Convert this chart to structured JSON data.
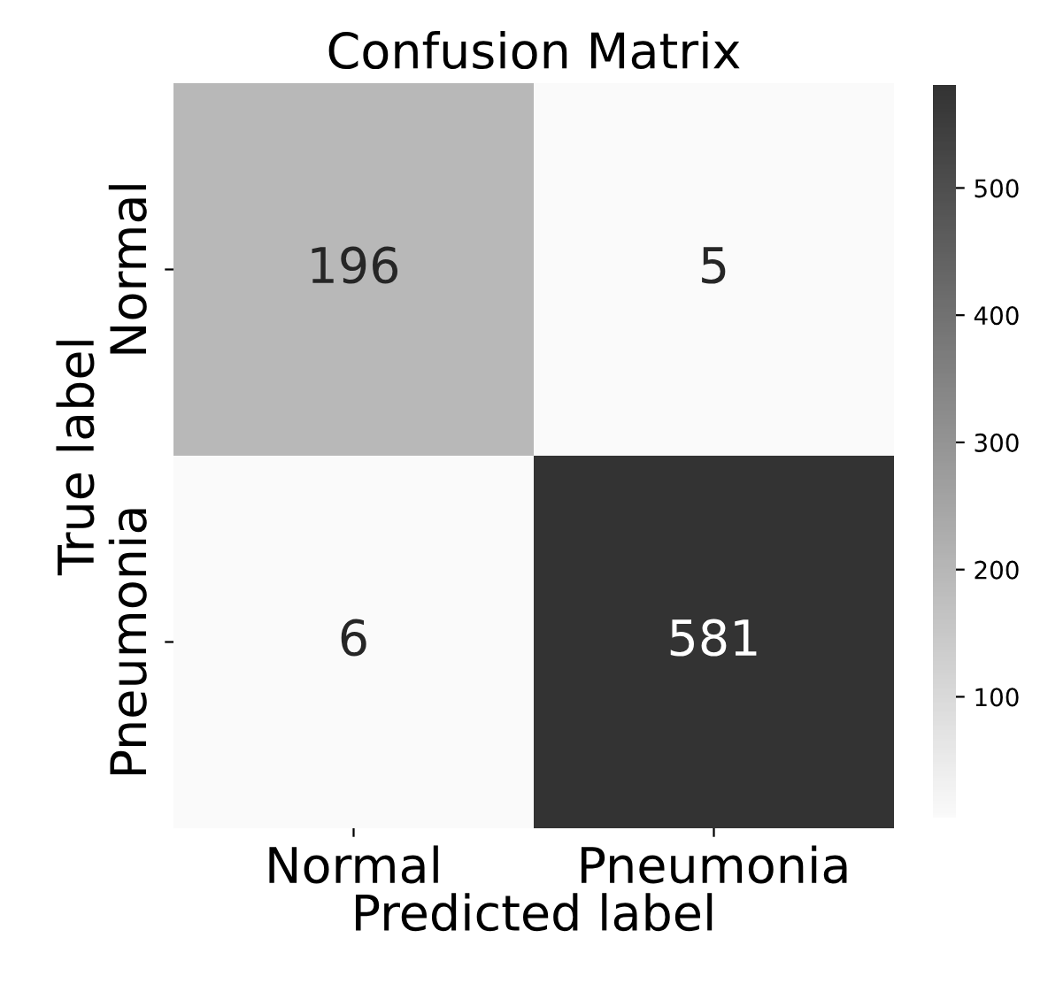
{
  "chart_data": {
    "type": "heatmap",
    "title": "Confusion Matrix",
    "xlabel": "Predicted label",
    "ylabel": "True label",
    "categories": [
      "Normal",
      "Pneumonia"
    ],
    "y_categories": [
      "Normal",
      "Pneumonia"
    ],
    "cells": [
      [
        196,
        5
      ],
      [
        6,
        581
      ]
    ],
    "data_labels": true,
    "clim": [
      5,
      581
    ],
    "cticks": [
      100,
      200,
      300,
      400,
      500
    ]
  }
}
